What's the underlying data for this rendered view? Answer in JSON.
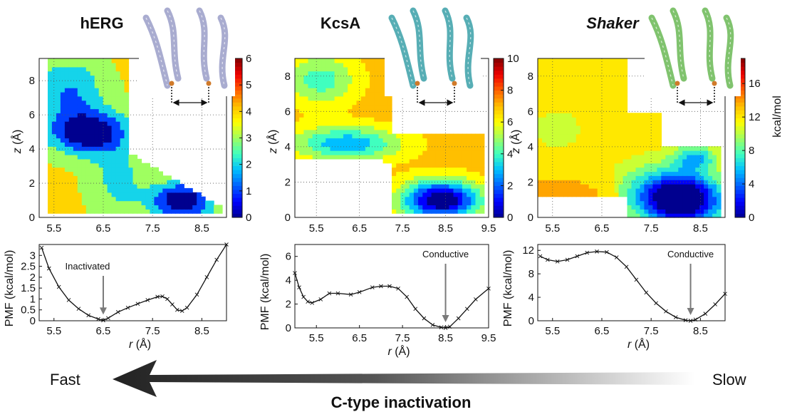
{
  "panels": [
    {
      "title": "hERG",
      "title_italic": false,
      "contour": {
        "x_ticks": [
          "5.5",
          "6.5",
          "7.5",
          "8.5"
        ],
        "y_ticks": [
          "0",
          "2",
          "4",
          "6",
          "8"
        ],
        "ylabel_var": "z",
        "ylabel_unit": " (Å)",
        "colorbar_ticks": [
          "0",
          "1",
          "2",
          "3",
          "4",
          "5",
          "6"
        ],
        "colorbar_unit": ""
      },
      "pmf": {
        "x_ticks": [
          "5.5",
          "6.5",
          "7.5",
          "8.5"
        ],
        "y_ticks": [
          "0",
          "0.5",
          "1",
          "1.5",
          "2",
          "2.5",
          "3"
        ],
        "annotation": "Inactivated",
        "ylabel": "PMF (kcal/mol)",
        "xlabel_var": "r",
        "xlabel_unit": " (Å)"
      }
    },
    {
      "title": "KcsA",
      "title_italic": false,
      "contour": {
        "x_ticks": [
          "5.5",
          "6.5",
          "7.5",
          "8.5",
          "9.5"
        ],
        "y_ticks": [
          "0",
          "2",
          "4",
          "6",
          "8"
        ],
        "ylabel_var": "z",
        "ylabel_unit": " (Å)",
        "colorbar_ticks": [
          "0",
          "2",
          "4",
          "6",
          "8",
          "10"
        ],
        "colorbar_unit": ""
      },
      "pmf": {
        "x_ticks": [
          "5.5",
          "6.5",
          "7.5",
          "8.5",
          "9.5"
        ],
        "y_ticks": [
          "0",
          "2",
          "4",
          "6"
        ],
        "annotation": "Conductive",
        "ylabel": "PMF (kcal/mol)",
        "xlabel_var": "r",
        "xlabel_unit": " (Å)"
      }
    },
    {
      "title": "Shaker",
      "title_italic": true,
      "contour": {
        "x_ticks": [
          "5.5",
          "6.5",
          "7.5",
          "8.5"
        ],
        "y_ticks": [
          "0",
          "2",
          "4",
          "6",
          "8"
        ],
        "ylabel_var": "z",
        "ylabel_unit": " (Å)",
        "colorbar_ticks": [
          "0",
          "4",
          "8",
          "12",
          "16"
        ],
        "colorbar_unit": "kcal/mol"
      },
      "pmf": {
        "x_ticks": [
          "5.5",
          "6.5",
          "7.5",
          "8.5"
        ],
        "y_ticks": [
          "0",
          "4",
          "8",
          "12"
        ],
        "annotation": "Conductive",
        "ylabel": "PMF (kcal/mol)",
        "xlabel_var": "r",
        "xlabel_unit": " (Å)"
      }
    }
  ],
  "arrow": {
    "left_label": "Fast",
    "right_label": "Slow",
    "caption": "C-type inactivation"
  },
  "colors": {
    "colormap": [
      "#00008f",
      "#0000ff",
      "#0060ff",
      "#00bfff",
      "#40ffbf",
      "#9fff60",
      "#ffff00",
      "#ffbf00",
      "#ff6000",
      "#ef0000",
      "#800000"
    ],
    "curve": "#111111",
    "annotation_arrow": "#7a7a7a",
    "big_arrow": "#333333"
  },
  "chart_data": [
    {
      "type": "heatmap",
      "title": "hERG",
      "xlabel": "r (Å)",
      "ylabel": "z (Å)",
      "xlim": [
        5.2,
        9.0
      ],
      "ylim": [
        0,
        9.3
      ],
      "colorbar_range": [
        0,
        6
      ],
      "minima": [
        {
          "r": 6.2,
          "z": 5.0,
          "v": 0
        },
        {
          "r": 8.1,
          "z": 1.0,
          "v": 0
        }
      ]
    },
    {
      "type": "heatmap",
      "title": "KcsA",
      "xlabel": "r (Å)",
      "ylabel": "z (Å)",
      "xlim": [
        5.0,
        9.5
      ],
      "ylim": [
        0,
        9.0
      ],
      "colorbar_range": [
        0,
        10
      ],
      "minima": [
        {
          "r": 8.4,
          "z": 1.0,
          "v": 0
        }
      ]
    },
    {
      "type": "heatmap",
      "title": "Shaker",
      "xlabel": "r (Å)",
      "ylabel": "z (Å)",
      "xlim": [
        5.2,
        9.0
      ],
      "ylim": [
        0,
        9.0
      ],
      "colorbar_range": [
        0,
        19
      ],
      "minima": [
        {
          "r": 8.2,
          "z": 1.0,
          "v": 0
        }
      ]
    },
    {
      "type": "line",
      "title": "hERG",
      "xlabel": "r (Å)",
      "ylabel": "PMF (kcal/mol)",
      "xlim": [
        5.2,
        9.0
      ],
      "ylim": [
        0,
        3.5
      ],
      "x": [
        5.25,
        5.4,
        5.6,
        5.8,
        6.0,
        6.2,
        6.4,
        6.5,
        6.6,
        6.8,
        7.0,
        7.2,
        7.4,
        7.6,
        7.7,
        7.8,
        7.9,
        8.0,
        8.1,
        8.2,
        8.4,
        8.6,
        8.8,
        9.0
      ],
      "values": [
        3.35,
        2.4,
        1.55,
        0.95,
        0.55,
        0.25,
        0.08,
        0.02,
        0.12,
        0.4,
        0.6,
        0.78,
        0.95,
        1.1,
        1.12,
        1.0,
        0.75,
        0.5,
        0.45,
        0.6,
        1.2,
        2.0,
        2.8,
        3.5
      ]
    },
    {
      "type": "line",
      "title": "KcsA",
      "xlabel": "r (Å)",
      "ylabel": "PMF (kcal/mol)",
      "xlim": [
        5.0,
        9.5
      ],
      "ylim": [
        0,
        7
      ],
      "x": [
        5.0,
        5.1,
        5.2,
        5.3,
        5.4,
        5.6,
        5.8,
        6.0,
        6.3,
        6.5,
        6.8,
        7.0,
        7.2,
        7.4,
        7.6,
        7.8,
        8.0,
        8.2,
        8.4,
        8.5,
        8.6,
        8.8,
        9.0,
        9.2,
        9.5
      ],
      "values": [
        4.6,
        3.4,
        2.6,
        2.2,
        2.1,
        2.4,
        2.9,
        2.9,
        2.8,
        3.0,
        3.4,
        3.5,
        3.5,
        3.3,
        2.6,
        1.6,
        0.8,
        0.25,
        0.05,
        0.0,
        0.1,
        0.8,
        1.6,
        2.4,
        3.3
      ]
    },
    {
      "type": "line",
      "title": "Shaker",
      "xlabel": "r (Å)",
      "ylabel": "PMF (kcal/mol)",
      "xlim": [
        5.2,
        9.0
      ],
      "ylim": [
        0,
        13
      ],
      "x": [
        5.25,
        5.4,
        5.6,
        5.8,
        6.0,
        6.2,
        6.4,
        6.6,
        6.8,
        7.0,
        7.2,
        7.4,
        7.6,
        7.8,
        8.0,
        8.2,
        8.3,
        8.4,
        8.6,
        8.8,
        9.0
      ],
      "values": [
        11.0,
        10.4,
        10.1,
        10.4,
        11.0,
        11.6,
        11.8,
        11.7,
        10.8,
        9.2,
        7.0,
        4.8,
        3.0,
        1.6,
        0.6,
        0.1,
        0.0,
        0.2,
        1.2,
        2.8,
        4.6
      ]
    }
  ]
}
